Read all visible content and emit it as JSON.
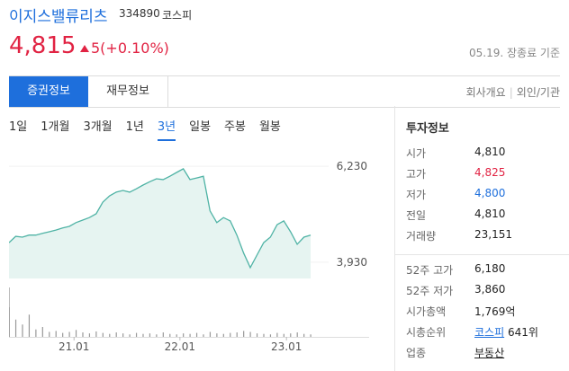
{
  "header": {
    "name": "이지스밸류리츠",
    "code": "334890",
    "market": "코스피"
  },
  "price": {
    "current": "4,815",
    "change": "5(+0.10%)",
    "as_of": "05.19. 장종료 기준"
  },
  "tabs": [
    "증권정보",
    "재무정보"
  ],
  "links": [
    "회사개요",
    "외인/기관"
  ],
  "periods": [
    "1일",
    "1개월",
    "3개월",
    "1년",
    "3년",
    "일봉",
    "주봉",
    "월봉"
  ],
  "chart_data": {
    "type": "line",
    "values": [
      4400,
      4550,
      4530,
      4580,
      4580,
      4620,
      4660,
      4700,
      4750,
      4790,
      4880,
      4940,
      5000,
      5090,
      5370,
      5520,
      5610,
      5650,
      5610,
      5690,
      5780,
      5860,
      5930,
      5910,
      5990,
      6080,
      6170,
      5910,
      5950,
      5990,
      5160,
      4880,
      5000,
      4920,
      4580,
      4150,
      3800,
      4100,
      4400,
      4530,
      4830,
      4920,
      4660,
      4360,
      4530,
      4580
    ],
    "volume": [
      60,
      35,
      25,
      45,
      15,
      20,
      10,
      12,
      8,
      10,
      14,
      9,
      7,
      11,
      8,
      6,
      9,
      7,
      5,
      8,
      6,
      7,
      5,
      9,
      6,
      5,
      7,
      6,
      8,
      5,
      10,
      7,
      6,
      8,
      9,
      12,
      10,
      7,
      6,
      5,
      8,
      6,
      7,
      9,
      6,
      5
    ],
    "volume_lim": [
      0,
      100
    ],
    "color": "#4fb3a5",
    "fill": "#e6f4f1",
    "ylim": [
      3540,
      6770
    ],
    "yticks": [
      {
        "value": 6230,
        "label": "6,230"
      },
      {
        "value": 3930,
        "label": "3,930"
      }
    ],
    "xlim": [
      0,
      45
    ],
    "xticks": [
      {
        "value": 9.7,
        "label": "21.01"
      },
      {
        "value": 25.5,
        "label": "22.01"
      },
      {
        "value": 41.4,
        "label": "23.01"
      }
    ]
  },
  "info": {
    "title": "투자정보",
    "rows": [
      [
        "시가",
        "4,810"
      ],
      [
        "고가",
        "4,825"
      ],
      [
        "저가",
        "4,800"
      ],
      [
        "전일",
        "4,810"
      ],
      [
        "거래량",
        "23,151"
      ]
    ],
    "rows2": [
      [
        "52주 고가",
        "6,180"
      ],
      [
        "52주 저가",
        "3,860"
      ],
      [
        "시가총액",
        "1,769억"
      ]
    ],
    "rank": [
      "시총순위",
      "코스피",
      "641위"
    ],
    "sector": [
      "업종",
      "부동산"
    ]
  }
}
